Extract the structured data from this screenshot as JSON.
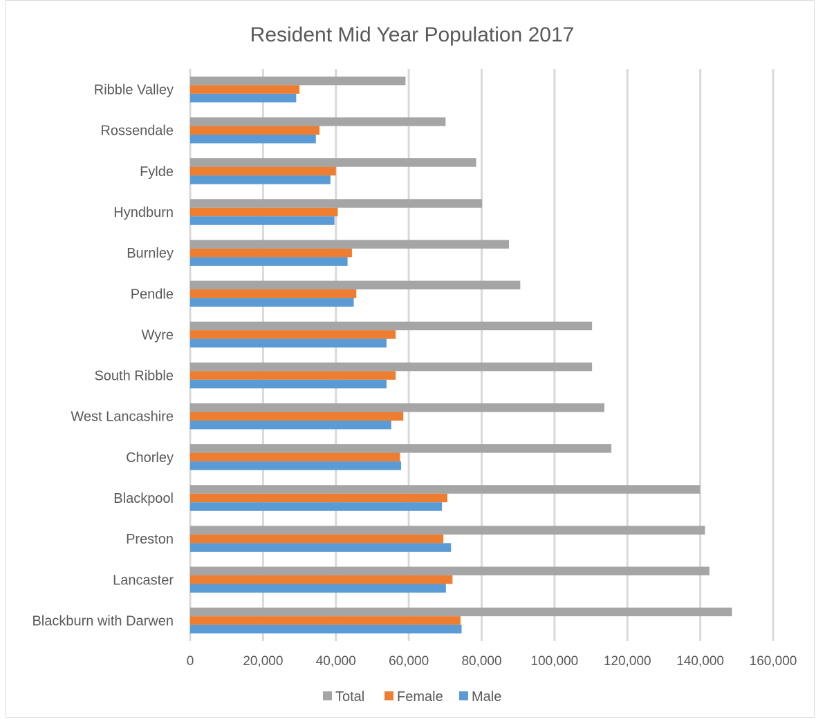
{
  "chart_data": {
    "type": "bar",
    "orientation": "horizontal",
    "title": "Resident Mid Year Population 2017",
    "xlabel": "",
    "ylabel": "",
    "xlim": [
      0,
      160000
    ],
    "x_ticks": [
      0,
      20000,
      40000,
      60000,
      80000,
      100000,
      120000,
      140000,
      160000
    ],
    "x_tick_labels": [
      "0",
      "20,000",
      "40,000",
      "60,000",
      "80,000",
      "100,000",
      "120,000",
      "140,000",
      "160,000"
    ],
    "grid": "vertical",
    "legend_position": "bottom",
    "categories": [
      "Ribble Valley",
      "Rossendale",
      "Fylde",
      "Hyndburn",
      "Burnley",
      "Pendle",
      "Wyre",
      "South Ribble",
      "West Lancashire",
      "Chorley",
      "Blackpool",
      "Preston",
      "Lancaster",
      "Blackburn with Darwen"
    ],
    "series": [
      {
        "name": "Total",
        "color": "#a5a5a5",
        "values": [
          59100,
          70100,
          78500,
          80100,
          87500,
          90600,
          110300,
          110300,
          113700,
          115600,
          139900,
          141300,
          142500,
          148700
        ]
      },
      {
        "name": "Female",
        "color": "#ed7d31",
        "values": [
          30000,
          35500,
          40000,
          40500,
          44400,
          45600,
          56400,
          56400,
          58500,
          57600,
          70600,
          69500,
          72000,
          74200
        ]
      },
      {
        "name": "Male",
        "color": "#5b9bd5",
        "values": [
          29100,
          34500,
          38500,
          39600,
          43200,
          44900,
          53900,
          53900,
          55200,
          57900,
          69100,
          71600,
          70200,
          74500
        ]
      }
    ],
    "legend_order": [
      "Total",
      "Female",
      "Male"
    ],
    "colors": {
      "gridline": "#d9d9d9",
      "axis_text": "#595959",
      "title_text": "#595959",
      "border": "#d9d9d9"
    }
  }
}
